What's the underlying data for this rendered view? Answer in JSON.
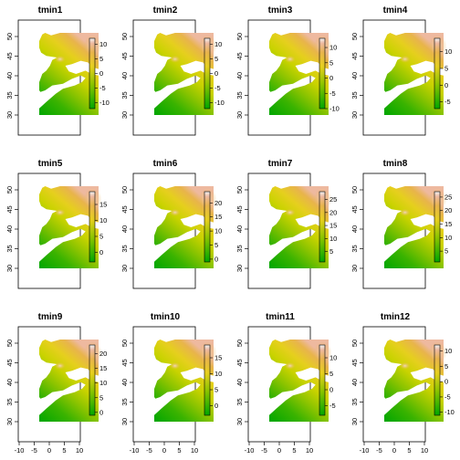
{
  "figure": {
    "columns": 4,
    "rows": 3,
    "x_ticks": [
      "-10",
      "-5",
      "0",
      "5",
      "10"
    ],
    "y_ticks": [
      "30",
      "35",
      "40",
      "45",
      "50"
    ],
    "palette": [
      "#00a600",
      "#3ab300",
      "#8cc400",
      "#c9d300",
      "#e6cf1e",
      "#e8b44c",
      "#eeb99f",
      "#f2f2f2"
    ],
    "panels": [
      {
        "title": "tmin1",
        "legend_ticks": [
          "10",
          "5",
          "0",
          "-5",
          "-10"
        ],
        "range": [
          -12,
          12
        ]
      },
      {
        "title": "tmin2",
        "legend_ticks": [
          "10",
          "5",
          "0",
          "-5",
          "-10"
        ],
        "range": [
          -12,
          12
        ]
      },
      {
        "title": "tmin3",
        "legend_ticks": [
          "10",
          "5",
          "0",
          "-5",
          "-10"
        ],
        "range": [
          -10,
          13
        ]
      },
      {
        "title": "tmin4",
        "legend_ticks": [
          "10",
          "5",
          "0",
          "-5"
        ],
        "range": [
          -7,
          14
        ]
      },
      {
        "title": "tmin5",
        "legend_ticks": [
          "15",
          "10",
          "5",
          "0"
        ],
        "range": [
          -3,
          19
        ]
      },
      {
        "title": "tmin6",
        "legend_ticks": [
          "20",
          "15",
          "10",
          "5",
          "0"
        ],
        "range": [
          -1,
          24
        ]
      },
      {
        "title": "tmin7",
        "legend_ticks": [
          "25",
          "20",
          "15",
          "10",
          "5"
        ],
        "range": [
          1,
          28
        ]
      },
      {
        "title": "tmin8",
        "legend_ticks": [
          "25",
          "20",
          "15",
          "10",
          "5"
        ],
        "range": [
          1,
          27
        ]
      },
      {
        "title": "tmin9",
        "legend_ticks": [
          "20",
          "15",
          "10",
          "5",
          "0"
        ],
        "range": [
          -1,
          23
        ]
      },
      {
        "title": "tmin10",
        "legend_ticks": [
          "15",
          "10",
          "5",
          "0"
        ],
        "range": [
          -3,
          19
        ]
      },
      {
        "title": "tmin11",
        "legend_ticks": [
          "10",
          "5",
          "0",
          "-5"
        ],
        "range": [
          -8,
          14
        ]
      },
      {
        "title": "tmin12",
        "legend_ticks": [
          "10",
          "5",
          "0",
          "-5",
          "-10"
        ],
        "range": [
          -11,
          12
        ]
      }
    ]
  }
}
